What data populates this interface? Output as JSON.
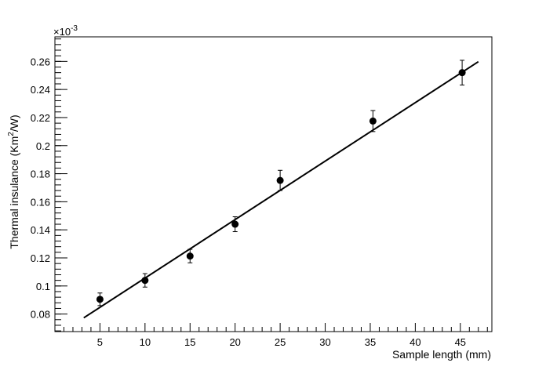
{
  "chart_data": {
    "type": "scatter",
    "xlabel": "Sample length (mm)",
    "ylabel_main": "Thermal insulance (Km",
    "ylabel_sup": "2",
    "ylabel_end": "/W)",
    "y_multiplier_base": "×10",
    "y_multiplier_exp": "-3",
    "xlim": [
      0,
      48.5
    ],
    "ylim": [
      0.0675,
      0.2775
    ],
    "x_ticks": [
      5,
      10,
      15,
      20,
      25,
      30,
      35,
      40,
      45
    ],
    "x_tick_labels": [
      "5",
      "10",
      "15",
      "20",
      "25",
      "30",
      "35",
      "40",
      "45"
    ],
    "y_ticks": [
      0.08,
      0.1,
      0.12,
      0.14,
      0.16,
      0.18,
      0.2,
      0.22,
      0.24,
      0.26
    ],
    "y_tick_labels": [
      "0.08",
      "0.1",
      "0.12",
      "0.14",
      "0.16",
      "0.18",
      "0.2",
      "0.22",
      "0.24",
      "0.26"
    ],
    "grid": false,
    "series": [
      {
        "x": [
          5,
          10,
          15,
          20,
          25,
          35.3,
          45.2
        ],
        "y": [
          0.0905,
          0.104,
          0.1213,
          0.144,
          0.1752,
          0.2175,
          0.252
        ],
        "y_err": [
          0.0045,
          0.0048,
          0.0048,
          0.0053,
          0.0072,
          0.0075,
          0.0088
        ],
        "color": "#000000"
      }
    ],
    "fit_line": {
      "x": [
        3.2,
        47.0
      ],
      "y": [
        0.0773,
        0.2598
      ],
      "color": "#000000"
    }
  }
}
